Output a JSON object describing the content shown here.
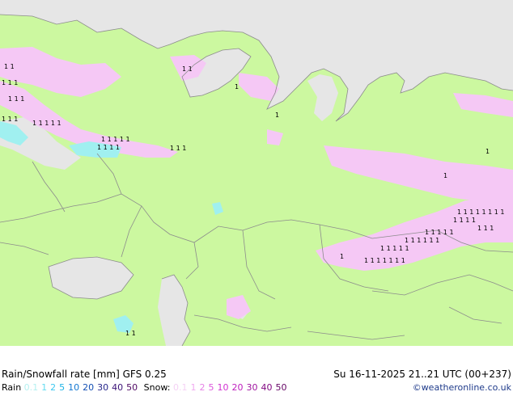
{
  "title": "Rain/Snowfall rate [mm] GFS 0.25",
  "datetime": "Su 16-11-2025 21..21 UTC (00+237)",
  "rain_legend": {
    "label": "Rain",
    "items": [
      {
        "text": "0.1",
        "color": "#b4f0f0"
      },
      {
        "text": "1",
        "color": "#64dcf0"
      },
      {
        "text": "2",
        "color": "#3cc8f0"
      },
      {
        "text": "5",
        "color": "#1eb4e6"
      },
      {
        "text": "10",
        "color": "#1478d2"
      },
      {
        "text": "20",
        "color": "#1450b4"
      },
      {
        "text": "30",
        "color": "#28288c"
      },
      {
        "text": "40",
        "color": "#3c1478"
      },
      {
        "text": "50",
        "color": "#500a64"
      }
    ]
  },
  "snow_legend": {
    "label": "Snow:",
    "items": [
      {
        "text": "0.1",
        "color": "#f5d2f5"
      },
      {
        "text": "1",
        "color": "#f0aaf0"
      },
      {
        "text": "2",
        "color": "#e682e6"
      },
      {
        "text": "5",
        "color": "#dc5adc"
      },
      {
        "text": "10",
        "color": "#d232d2"
      },
      {
        "text": "20",
        "color": "#be1ebe"
      },
      {
        "text": "30",
        "color": "#a014a0"
      },
      {
        "text": "40",
        "color": "#820a82"
      },
      {
        "text": "50",
        "color": "#640564"
      }
    ]
  },
  "credit": "©weatheronline.co.uk",
  "colors": {
    "land": "#ccf8a0",
    "sea": "#e6e6e6",
    "snow_light": "#f5c8f5",
    "rain_light": "#a0f0f0",
    "border": "#8c8c8c"
  }
}
